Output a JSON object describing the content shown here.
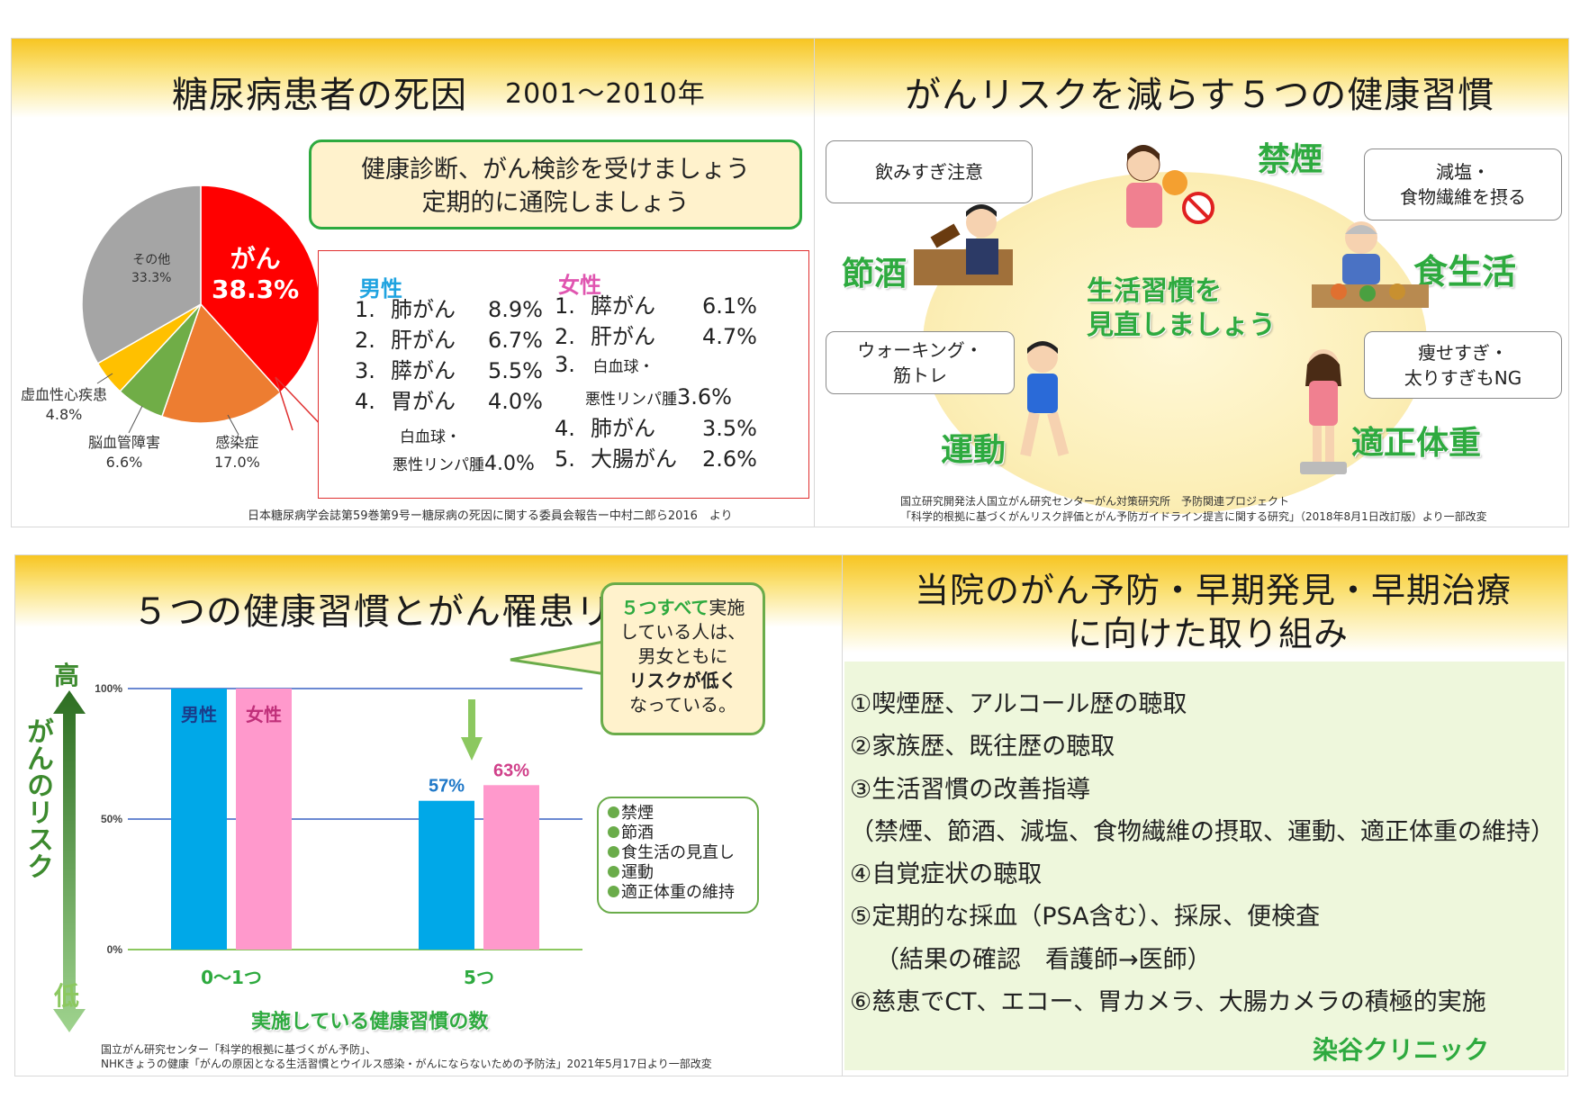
{
  "panel1": {
    "title": "糖尿病患者の死因",
    "period": "2001〜2010年",
    "notice": [
      "健康診断、がん検診を受けましょう",
      "定期的に通院しましょう"
    ],
    "source": "日本糖尿病学会誌第59巻第9号ー糖尿病の死因に関する委員会報告ー中村二郎ら2016　より",
    "pie_labels": {
      "cancer_name": "がん",
      "cancer_pct": "38.3%",
      "other_name": "その他",
      "other_pct": "33.3%",
      "ihd_name": "虚血性心疾患",
      "ihd_pct": "4.8%",
      "cvd_name": "脳血管障害",
      "cvd_pct": "6.6%",
      "inf_name": "感染症",
      "inf_pct": "17.0%"
    },
    "male_header": "男性",
    "female_header": "女性",
    "male_list": [
      {
        "num": "1.",
        "name": "肺がん",
        "pct": "8.9%"
      },
      {
        "num": "2.",
        "name": "肝がん",
        "pct": "6.7%"
      },
      {
        "num": "3.",
        "name": "膵がん",
        "pct": "5.5%"
      },
      {
        "num": "4.",
        "name": "胃がん",
        "pct": "4.0%"
      }
    ],
    "male_extra": {
      "line1": "白血球・",
      "line2": "悪性リンパ腫",
      "pct": "4.0%"
    },
    "female_list": [
      {
        "num": "1.",
        "name": "膵がん",
        "pct": "6.1%"
      },
      {
        "num": "2.",
        "name": "肝がん",
        "pct": "4.7%"
      }
    ],
    "female_3": {
      "num": "3.",
      "line1": "白血球・",
      "line2": "悪性リンパ腫",
      "pct": "3.6%"
    },
    "female_list2": [
      {
        "num": "4.",
        "name": "肺がん",
        "pct": "3.5%"
      },
      {
        "num": "5.",
        "name": "大腸がん",
        "pct": "2.6%"
      }
    ]
  },
  "panel2": {
    "title": "がんリスクを減らす５つの健康習慣",
    "center": [
      "生活習慣を",
      "見直しましょう"
    ],
    "habits": {
      "smoke": "禁煙",
      "drink": "節酒",
      "diet": "食生活",
      "exercise": "運動",
      "weight": "適正体重"
    },
    "bubbles": {
      "drink": "飲みすぎ注意",
      "diet1": "減塩・",
      "diet2": "食物繊維を摂る",
      "ex1": "ウォーキング・",
      "ex2": "筋トレ",
      "wt1": "痩せすぎ・",
      "wt2": "太りすぎもNG"
    },
    "source1": "国立研究開発法人国立がん研究センターがん対策研究所　予防関連プロジェクト",
    "source2": "「科学的根拠に基づくがんリスク評価とがん予防ガイドライン提言に関する研究」（2018年8月1日改訂版）より一部改変"
  },
  "panel3": {
    "title": "５つの健康習慣とがん罹患リスク",
    "axis_high": "高",
    "axis_low": "低",
    "axis_label": "がんのリスク",
    "xlabel": "実施している健康習慣の数",
    "callout": {
      "p1": "５つすべて",
      "p2": "実施",
      "l2": "している人は、",
      "l3": "男女ともに",
      "l4": "リスクが低く",
      "l5": "なっている。"
    },
    "list": [
      "禁煙",
      "節酒",
      "食生活の見直し",
      "運動",
      "適正体重の維持"
    ],
    "source1": "国立がん研究センター「科学的根拠に基づくがん予防」、",
    "source2": "NHKきょうの健康「がんの原因となる生活習慣とウイルス感染・がんにならないための予防法」2021年5月17日より一部改変"
  },
  "panel4": {
    "title1": "当院のがん予防・早期発見・早期治療",
    "title2": "に向けた取り組み",
    "items": [
      "①喫煙歴、アルコール歴の聴取",
      "②家族歴、既往歴の聴取",
      "③生活習慣の改善指導",
      "（禁煙、節酒、減塩、食物繊維の摂取、運動、適正体重の維持）",
      "④自覚症状の聴取",
      "⑤定期的な採血（PSA含む）、採尿、便検査",
      "（結果の確認　看護師→医師）",
      "⑥慈恵でCT、エコー、胃カメラ、大腸カメラの積極的実施"
    ],
    "clinic": "染谷クリニック"
  },
  "chart_data": [
    {
      "type": "pie",
      "title": "糖尿病患者の死因",
      "categories": [
        "がん",
        "感染症",
        "脳血管障害",
        "虚血性心疾患",
        "その他"
      ],
      "values": [
        38.3,
        17.0,
        6.6,
        4.8,
        33.3
      ],
      "colors": [
        "#ff0000",
        "#ed7d31",
        "#70ad47",
        "#ffc000",
        "#a5a5a5"
      ]
    },
    {
      "type": "bar",
      "title": "５つの健康習慣とがん罹患リスク",
      "categories": [
        "0～1つ",
        "5つ"
      ],
      "series": [
        {
          "name": "男性",
          "values": [
            100,
            57
          ],
          "color": "#00a8e8",
          "labels": [
            "",
            "57%"
          ]
        },
        {
          "name": "女性",
          "values": [
            100,
            63
          ],
          "color": "#ff99cc",
          "labels": [
            "",
            "63%"
          ]
        }
      ],
      "yticks": [
        "100%",
        "50%",
        "0%"
      ],
      "ylim": [
        0,
        100
      ],
      "xlabel": "実施している健康習慣の数",
      "ylabel": "がんのリスク"
    }
  ]
}
